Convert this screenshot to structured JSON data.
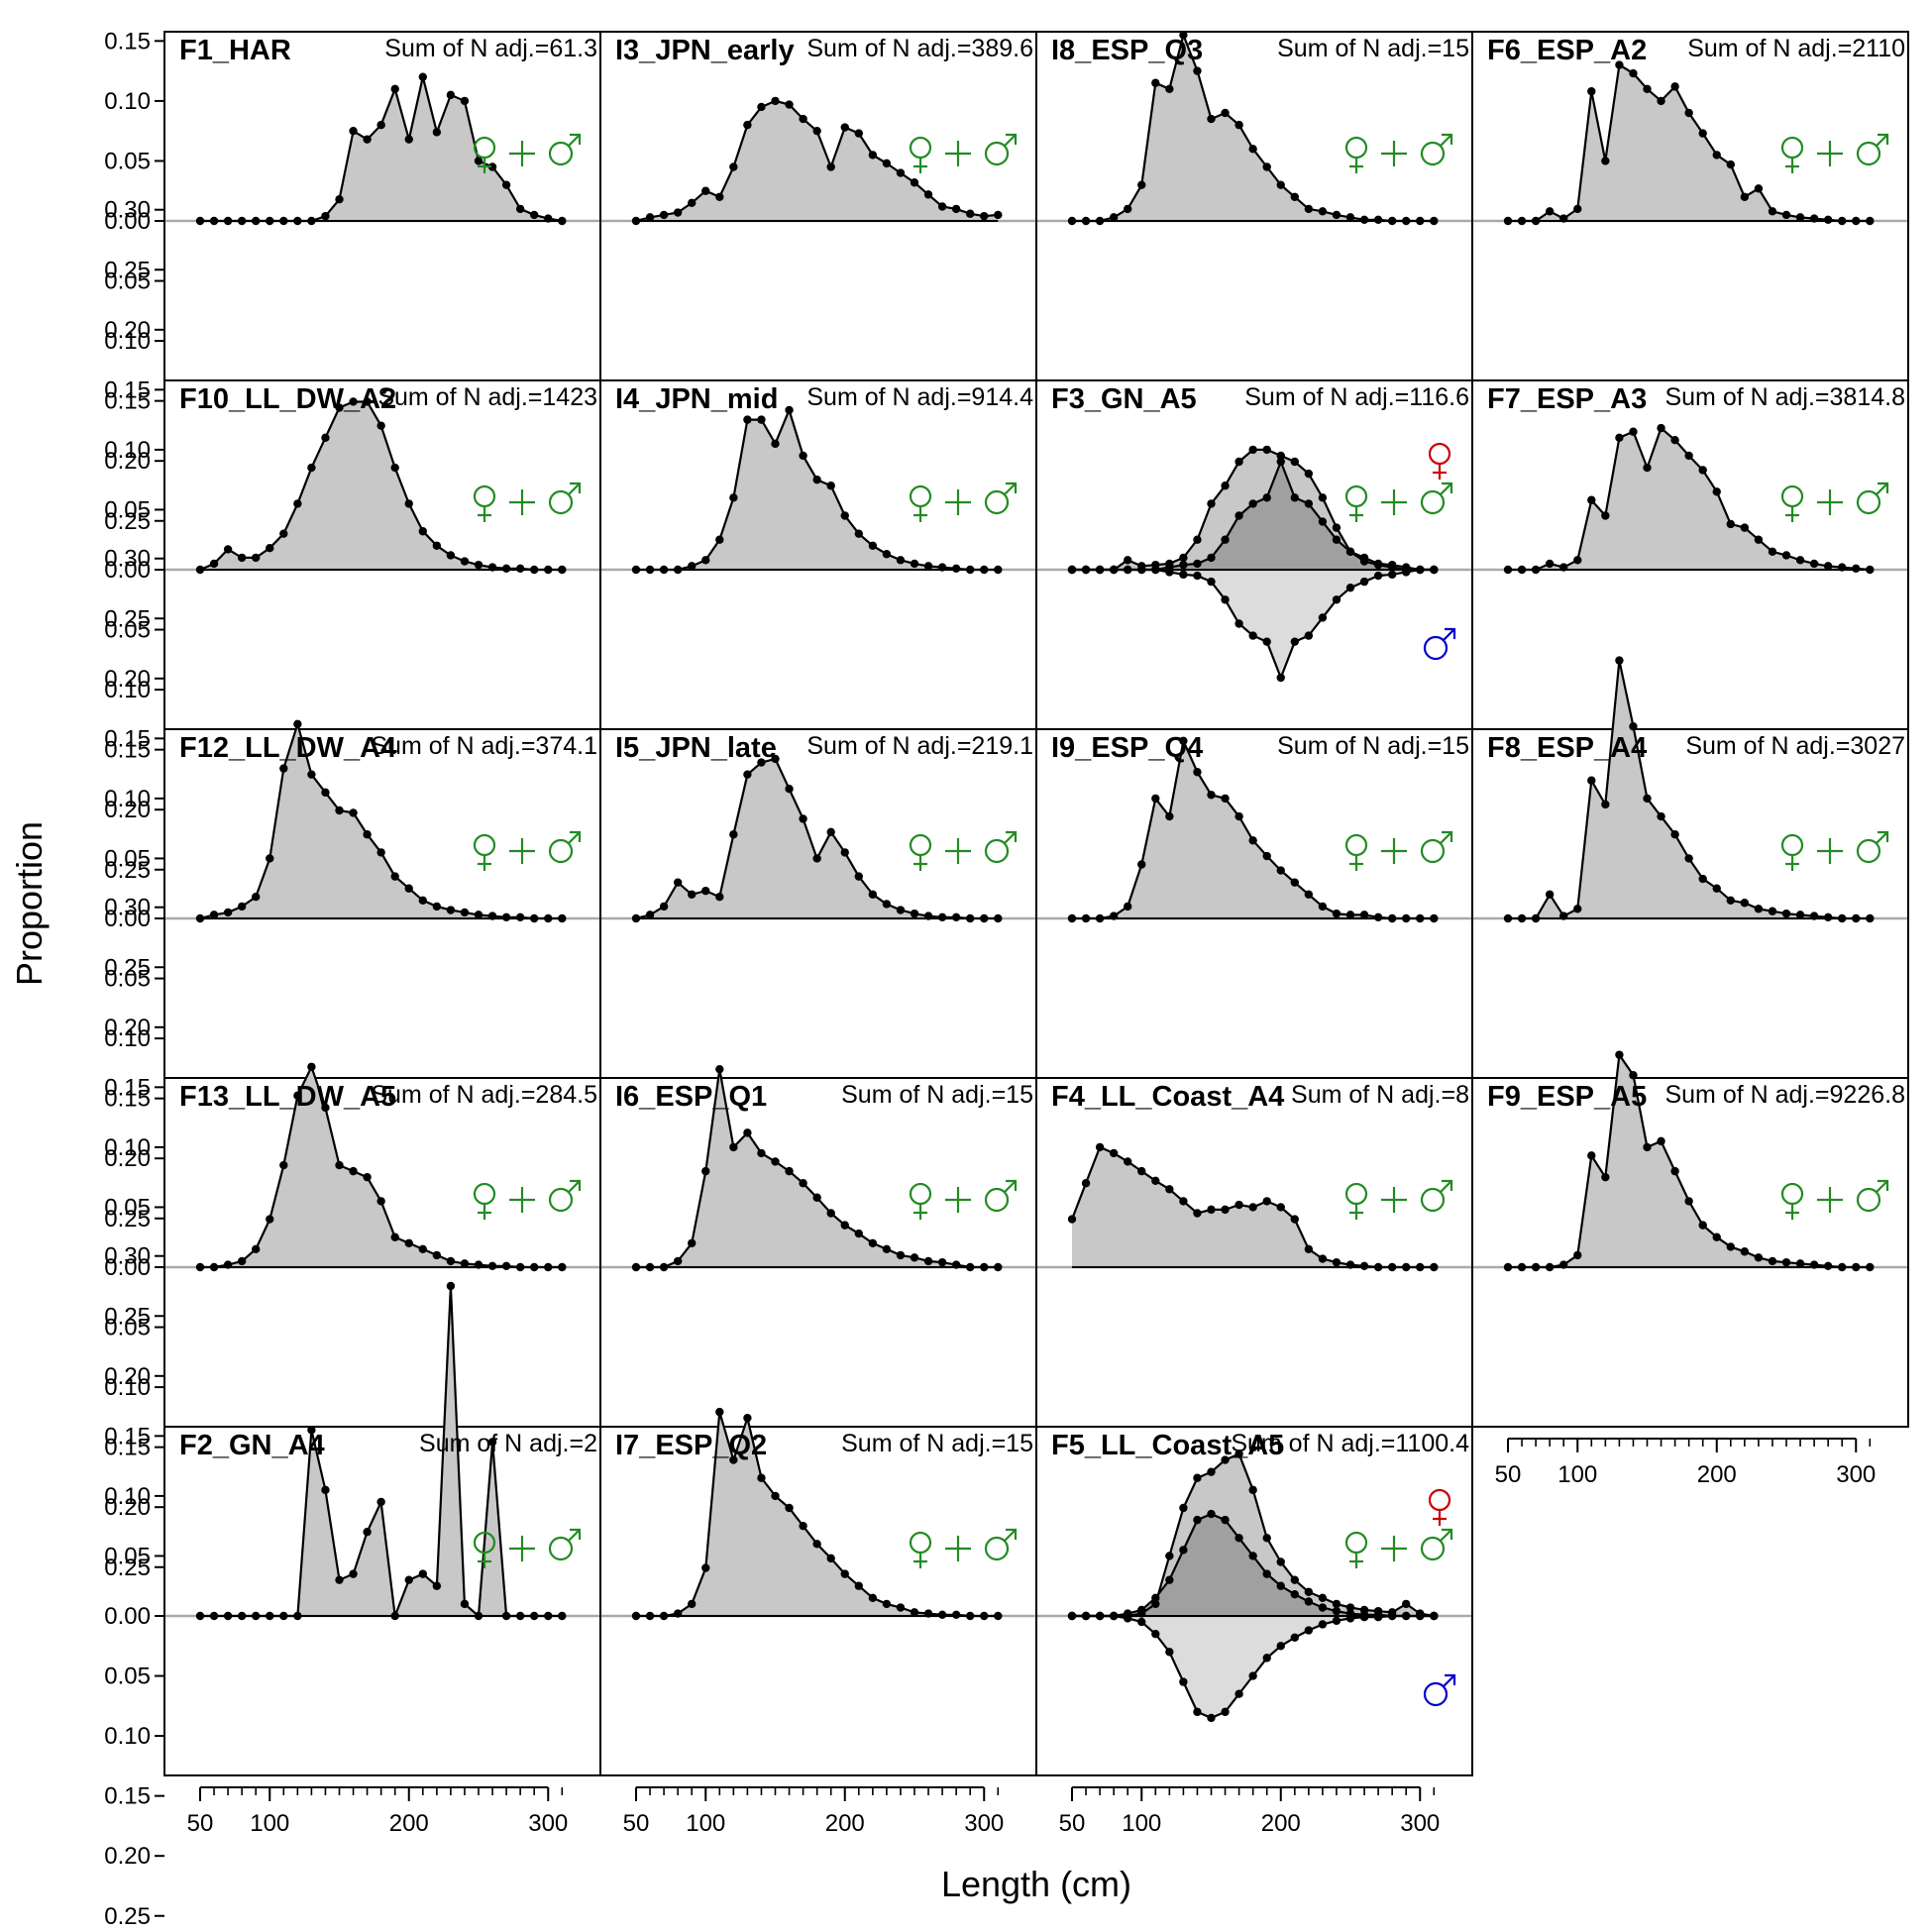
{
  "chart_data": {
    "type": "area",
    "xlabel": "Length (cm)",
    "ylabel": "Proportion",
    "xlim": [
      25,
      335
    ],
    "ylim": [
      -0.26,
      0.3
    ],
    "y_tick_values": [
      0.3,
      0.25,
      0.2,
      0.15,
      0.1,
      0.05,
      0.0,
      -0.05,
      -0.1,
      -0.15,
      -0.2,
      -0.25
    ],
    "y_tick_labels": [
      "0.30",
      "0.25",
      "0.20",
      "0.15",
      "0.10",
      "0.05",
      "0.00",
      "0.05",
      "0.10",
      "0.15",
      "0.20",
      "0.25"
    ],
    "x_ticks": [
      50,
      100,
      200,
      300
    ],
    "x_tick_labels": [
      "50",
      "100",
      "200",
      "300"
    ],
    "length_bins": [
      50,
      60,
      70,
      80,
      90,
      100,
      110,
      120,
      130,
      140,
      150,
      160,
      170,
      180,
      190,
      200,
      210,
      220,
      230,
      240,
      250,
      260,
      270,
      280,
      290,
      300,
      310
    ],
    "colors": {
      "female": "#cc0000",
      "male": "#0000cc",
      "combined": "#228b22",
      "fill": "#c8c8c8",
      "overlap": "#a0a0a0"
    },
    "symbols": {
      "combined": "♀+♂",
      "female": "♀",
      "male": "♂"
    },
    "panels": [
      {
        "name": "F1_HAR",
        "sumn": "Sum of N adj.=61.3",
        "combined": [
          0,
          0,
          0,
          0,
          0,
          0,
          0,
          0,
          0,
          0.004,
          0.018,
          0.075,
          0.068,
          0.08,
          0.11,
          0.068,
          0.12,
          0.074,
          0.105,
          0.1,
          0.05,
          0.045,
          0.03,
          0.01,
          0.005,
          0.002,
          0
        ]
      },
      {
        "name": "I3_JPN_early",
        "sumn": "Sum of N adj.=389.6",
        "combined": [
          0,
          0.003,
          0.005,
          0.007,
          0.015,
          0.025,
          0.02,
          0.045,
          0.08,
          0.095,
          0.1,
          0.097,
          0.085,
          0.075,
          0.045,
          0.078,
          0.073,
          0.055,
          0.048,
          0.04,
          0.032,
          0.022,
          0.012,
          0.01,
          0.006,
          0.004,
          0.005
        ]
      },
      {
        "name": "I8_ESP_Q3",
        "sumn": "Sum of N adj.=15",
        "combined": [
          0,
          0,
          0,
          0.003,
          0.01,
          0.03,
          0.115,
          0.11,
          0.155,
          0.125,
          0.085,
          0.09,
          0.08,
          0.06,
          0.045,
          0.03,
          0.02,
          0.01,
          0.008,
          0.005,
          0.003,
          0.001,
          0.001,
          0,
          0,
          0,
          0
        ]
      },
      {
        "name": "F6_ESP_A2",
        "sumn": "Sum of N adj.=2110",
        "combined": [
          0,
          0,
          0,
          0.008,
          0.002,
          0.01,
          0.108,
          0.05,
          0.13,
          0.123,
          0.11,
          0.1,
          0.112,
          0.09,
          0.073,
          0.055,
          0.047,
          0.02,
          0.027,
          0.008,
          0.005,
          0.003,
          0.002,
          0.001,
          0,
          0,
          0
        ]
      },
      {
        "name": "F10_LL_DW_A2",
        "sumn": "Sum of N adj.=1423",
        "combined": [
          0,
          0.005,
          0.017,
          0.01,
          0.01,
          0.018,
          0.03,
          0.055,
          0.085,
          0.11,
          0.135,
          0.14,
          0.14,
          0.12,
          0.085,
          0.055,
          0.032,
          0.02,
          0.012,
          0.007,
          0.004,
          0.002,
          0.001,
          0.001,
          0,
          0,
          0
        ]
      },
      {
        "name": "I4_JPN_mid",
        "sumn": "Sum of N adj.=914.4",
        "combined": [
          0,
          0,
          0,
          0,
          0.003,
          0.008,
          0.025,
          0.06,
          0.125,
          0.125,
          0.105,
          0.133,
          0.095,
          0.075,
          0.07,
          0.045,
          0.03,
          0.02,
          0.013,
          0.008,
          0.005,
          0.003,
          0.002,
          0.001,
          0,
          0,
          0
        ]
      },
      {
        "name": "F3_GN_A5",
        "sumn": "Sum of N adj.=116.6",
        "combined": null,
        "female": [
          0,
          0,
          0,
          0,
          0.008,
          0.003,
          0.004,
          0.005,
          0.01,
          0.025,
          0.055,
          0.07,
          0.09,
          0.1,
          0.1,
          0.095,
          0.09,
          0.08,
          0.06,
          0.035,
          0.015,
          0.007,
          0.004,
          0.002,
          0,
          0,
          0
        ],
        "male": [
          0,
          0,
          0,
          0,
          0,
          0,
          0,
          0.002,
          0.004,
          0.005,
          0.01,
          0.025,
          0.045,
          0.055,
          0.06,
          0.09,
          0.06,
          0.055,
          0.04,
          0.025,
          0.015,
          0.01,
          0.005,
          0.004,
          0.002,
          0,
          0
        ]
      },
      {
        "name": "F7_ESP_A3",
        "sumn": "Sum of N adj.=3814.8",
        "combined": [
          0,
          0,
          0,
          0.005,
          0.002,
          0.008,
          0.058,
          0.045,
          0.11,
          0.115,
          0.085,
          0.118,
          0.108,
          0.095,
          0.083,
          0.065,
          0.038,
          0.035,
          0.025,
          0.015,
          0.012,
          0.008,
          0.005,
          0.003,
          0.002,
          0.001,
          0
        ]
      },
      {
        "name": "F12_LL_DW_A4",
        "sumn": "Sum of N adj.=374.1",
        "combined": [
          0,
          0.003,
          0.005,
          0.01,
          0.018,
          0.05,
          0.125,
          0.162,
          0.12,
          0.105,
          0.09,
          0.088,
          0.07,
          0.055,
          0.035,
          0.025,
          0.015,
          0.01,
          0.007,
          0.005,
          0.003,
          0.002,
          0.001,
          0.001,
          0,
          0,
          0
        ]
      },
      {
        "name": "I5_JPN_late",
        "sumn": "Sum of N adj.=219.1",
        "combined": [
          0,
          0.003,
          0.01,
          0.03,
          0.02,
          0.023,
          0.018,
          0.07,
          0.12,
          0.13,
          0.133,
          0.108,
          0.083,
          0.05,
          0.072,
          0.055,
          0.035,
          0.02,
          0.012,
          0.007,
          0.004,
          0.002,
          0.001,
          0.001,
          0,
          0,
          0
        ]
      },
      {
        "name": "I9_ESP_Q4",
        "sumn": "Sum of N adj.=15",
        "combined": [
          0,
          0,
          0,
          0.002,
          0.01,
          0.045,
          0.1,
          0.085,
          0.148,
          0.122,
          0.103,
          0.1,
          0.085,
          0.065,
          0.052,
          0.04,
          0.03,
          0.02,
          0.01,
          0.004,
          0.003,
          0.003,
          0.001,
          0,
          0,
          0,
          0
        ]
      },
      {
        "name": "F8_ESP_A4",
        "sumn": "Sum of N adj.=3027",
        "combined": [
          0,
          0,
          0,
          0.02,
          0.002,
          0.008,
          0.115,
          0.095,
          0.215,
          0.16,
          0.1,
          0.085,
          0.07,
          0.05,
          0.033,
          0.025,
          0.015,
          0.013,
          0.008,
          0.006,
          0.004,
          0.003,
          0.002,
          0.001,
          0,
          0,
          0
        ]
      },
      {
        "name": "F13_LL_DW_A5",
        "sumn": "Sum of N adj.=284.5",
        "combined": [
          0,
          0,
          0.002,
          0.005,
          0.015,
          0.04,
          0.085,
          0.143,
          0.167,
          0.133,
          0.085,
          0.08,
          0.075,
          0.055,
          0.025,
          0.02,
          0.015,
          0.01,
          0.005,
          0.003,
          0.002,
          0.001,
          0.001,
          0,
          0,
          0,
          0
        ]
      },
      {
        "name": "I6_ESP_Q1",
        "sumn": "Sum of N adj.=15",
        "combined": [
          0,
          0,
          0,
          0.005,
          0.02,
          0.08,
          0.165,
          0.1,
          0.112,
          0.095,
          0.088,
          0.08,
          0.07,
          0.058,
          0.045,
          0.035,
          0.028,
          0.02,
          0.015,
          0.01,
          0.008,
          0.005,
          0.004,
          0.002,
          0,
          0,
          0
        ]
      },
      {
        "name": "F4_LL_Coast_A4",
        "sumn": "Sum of N adj.=8",
        "combined": [
          0.04,
          0.07,
          0.1,
          0.095,
          0.088,
          0.08,
          0.072,
          0.065,
          0.055,
          0.045,
          0.048,
          0.048,
          0.052,
          0.05,
          0.055,
          0.05,
          0.04,
          0.015,
          0.007,
          0.004,
          0.002,
          0.001,
          0,
          0,
          0,
          0,
          0
        ]
      },
      {
        "name": "F9_ESP_A5",
        "sumn": "Sum of N adj.=9226.8",
        "combined": [
          0,
          0,
          0,
          0,
          0.002,
          0.01,
          0.093,
          0.075,
          0.177,
          0.16,
          0.1,
          0.105,
          0.08,
          0.055,
          0.035,
          0.025,
          0.017,
          0.013,
          0.008,
          0.005,
          0.004,
          0.003,
          0.002,
          0.001,
          0,
          0,
          0
        ]
      },
      {
        "name": "F2_GN_A4",
        "sumn": "Sum of N adj.=2",
        "combined": [
          0,
          0,
          0,
          0,
          0,
          0,
          0,
          0,
          0.155,
          0.105,
          0.03,
          0.035,
          0.07,
          0.095,
          0,
          0.03,
          0.035,
          0.025,
          0.275,
          0.01,
          0,
          0.145,
          0,
          0,
          0,
          0,
          0
        ]
      },
      {
        "name": "I7_ESP_Q2",
        "sumn": "Sum of N adj.=15",
        "combined": [
          0,
          0,
          0,
          0.002,
          0.01,
          0.04,
          0.17,
          0.13,
          0.165,
          0.115,
          0.1,
          0.09,
          0.075,
          0.06,
          0.048,
          0.035,
          0.025,
          0.015,
          0.01,
          0.007,
          0.003,
          0.002,
          0.001,
          0.001,
          0,
          0,
          0
        ]
      },
      {
        "name": "F5_LL_Coast_A5",
        "sumn": "Sum of N adj.=1100.4",
        "combined": null,
        "female": [
          0,
          0,
          0,
          0,
          0,
          0.002,
          0.01,
          0.05,
          0.09,
          0.115,
          0.12,
          0.13,
          0.135,
          0.105,
          0.065,
          0.045,
          0.03,
          0.02,
          0.015,
          0.01,
          0.007,
          0.005,
          0.004,
          0.003,
          0.01,
          0.002,
          0
        ],
        "male": [
          0,
          0,
          0,
          0,
          0.002,
          0.005,
          0.015,
          0.03,
          0.055,
          0.08,
          0.085,
          0.08,
          0.065,
          0.05,
          0.035,
          0.025,
          0.018,
          0.012,
          0.007,
          0.004,
          0.002,
          0.001,
          0.001,
          0,
          0,
          0,
          0
        ]
      }
    ]
  }
}
